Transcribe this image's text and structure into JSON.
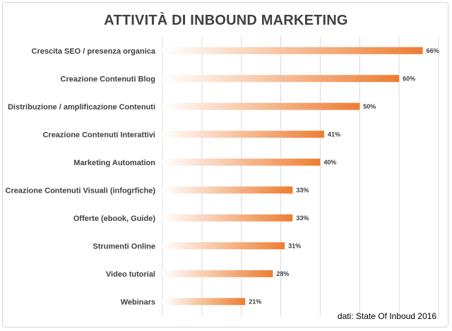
{
  "chart_data": {
    "type": "bar",
    "orientation": "horizontal",
    "title": "ATTIVITÀ DI INBOUND MARKETING",
    "categories": [
      "Crescita SEO / presenza organica",
      "Creazione Contenuti Blog",
      "Distribuzione / amplificazione Contenuti",
      "Creazione Contenuti Interattivi",
      "Marketing Automation",
      "Creazione Contenuti Visuali (infogrfiche)",
      "Offerte (ebook, Guide)",
      "Strumenti Online",
      "Video tutorial",
      "Webinars"
    ],
    "values": [
      66,
      60,
      50,
      41,
      40,
      33,
      33,
      31,
      28,
      21
    ],
    "value_labels": [
      "66%",
      "60%",
      "50%",
      "41%",
      "40%",
      "33%",
      "33%",
      "31%",
      "28%",
      "21%"
    ],
    "xlim": [
      0,
      70
    ],
    "grid": true,
    "source": "dati: State Of Inboud 2016",
    "colors": {
      "bar_start": "#ffffff",
      "bar_end": "#ed7d31",
      "grid": "#d9d9d9",
      "text": "#404040"
    }
  }
}
